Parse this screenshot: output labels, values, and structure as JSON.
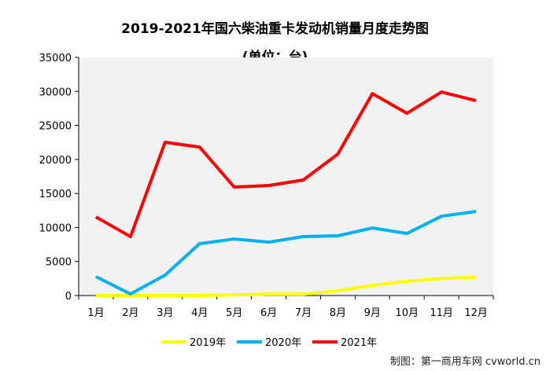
{
  "chart_data": {
    "type": "line",
    "title": "2019-2021年国六柴油重卡发动机销量月度走势图",
    "subtitle": "(单位：台)",
    "categories": [
      "1月",
      "2月",
      "3月",
      "4月",
      "5月",
      "6月",
      "7月",
      "8月",
      "9月",
      "10月",
      "11月",
      "12月"
    ],
    "yticks": [
      0,
      5000,
      10000,
      15000,
      20000,
      25000,
      30000,
      35000
    ],
    "ylim": [
      0,
      35000
    ],
    "legend_position": "bottom",
    "series": [
      {
        "name": "2019年",
        "color": "#FFFF00",
        "values": [
          0,
          0,
          0,
          0,
          100,
          200,
          200,
          700,
          1500,
          2100,
          2500,
          2700
        ]
      },
      {
        "name": "2020年",
        "color": "#00B0F0",
        "values": [
          2770,
          230,
          3000,
          7620,
          8310,
          7850,
          8660,
          8780,
          9930,
          9120,
          11660,
          12360
        ]
      },
      {
        "name": "2021年",
        "color": "#FF0000",
        "values": [
          11550,
          8660,
          22520,
          21820,
          15940,
          16170,
          16980,
          20790,
          29680,
          26790,
          29910,
          28640
        ]
      }
    ]
  },
  "credit": "制图：第一商用车网 cvworld.cn"
}
